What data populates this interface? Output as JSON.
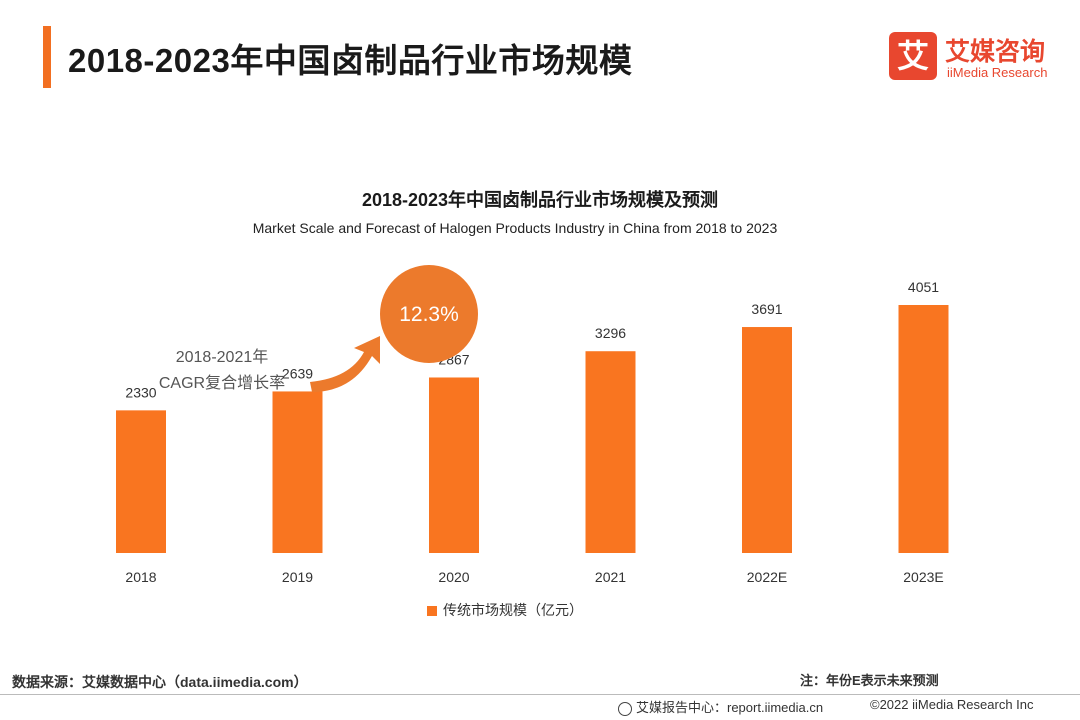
{
  "header": {
    "title": "2018-2023年中国卤制品行业市场规模",
    "logo_mark": "艾",
    "logo_cn": "艾媒咨询",
    "logo_en": "iiMedia Research"
  },
  "chart_data": {
    "type": "bar",
    "title": "2018-2023年中国卤制品行业市场规模及预测",
    "subtitle": "Market Scale and Forecast of Halogen Products Industry in China from 2018  to 2023",
    "categories": [
      "2018",
      "2019",
      "2020",
      "2021",
      "2022E",
      "2023E"
    ],
    "series": [
      {
        "name": "传统市场规模（亿元）",
        "values": [
          2330,
          2639,
          2867,
          3296,
          3691,
          4051
        ]
      }
    ],
    "ylim": [
      0,
      4200
    ],
    "xlabel": "",
    "ylabel": "",
    "grid": false,
    "legend_position": "bottom-center",
    "bar_color": "#f97520",
    "annotation": {
      "label_line1": "2018-2021年",
      "label_line2": "CAGR复合增长率",
      "value": "12.3%",
      "circle_color": "#ec7a2c"
    }
  },
  "footer": {
    "source": "数据来源：艾媒数据中心（data.iimedia.com）",
    "note": "注：年份E表示未来预测",
    "report_center": "艾媒报告中心：report.iimedia.cn",
    "copyright": "©2022  iiMedia Research  Inc"
  }
}
